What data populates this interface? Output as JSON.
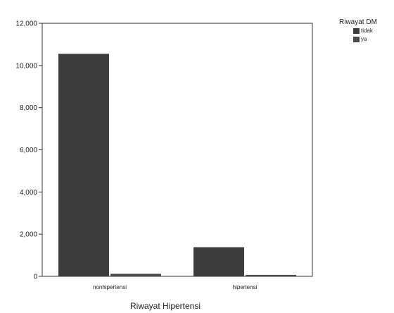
{
  "chart_data": {
    "type": "bar",
    "title": "",
    "xlabel": "Riwayat Hipertensi",
    "ylabel": "",
    "categories": [
      "nonhipertensi",
      "hipertensi"
    ],
    "series": [
      {
        "name": "tidak",
        "values": [
          10550,
          1380
        ],
        "color": "#3c3c3c"
      },
      {
        "name": "ya",
        "values": [
          120,
          70
        ],
        "color": "#4a4a4a"
      }
    ],
    "ylim": [
      0,
      12000
    ],
    "yticks": [
      0,
      2000,
      4000,
      6000,
      8000,
      10000,
      12000
    ],
    "ytick_labels": [
      "0",
      "2,000",
      "4,000",
      "6,000",
      "8,000",
      "10,000",
      "12,000"
    ],
    "legend": {
      "title": "Riwayat DM",
      "position": "top-right"
    },
    "grid": false
  }
}
